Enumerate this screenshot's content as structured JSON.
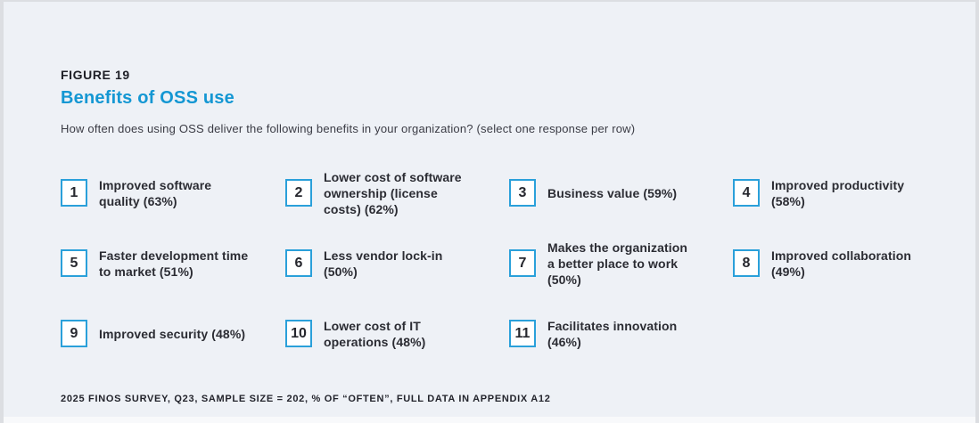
{
  "figure": {
    "label": "FIGURE 19",
    "title": "Benefits of OSS use",
    "question": "How often does using OSS deliver the following benefits in your organization? (select one response per row)",
    "footnote": "2025 FINOS SURVEY, Q23, SAMPLE SIZE = 202, % OF “OFTEN”, FULL DATA IN APPENDIX A12"
  },
  "grid": {
    "items": [
      {
        "rank": "1",
        "text": "Improved software quality (63%)"
      },
      {
        "rank": "2",
        "text": "Lower cost of software ownership (license costs) (62%)"
      },
      {
        "rank": "3",
        "text": "Business value (59%)"
      },
      {
        "rank": "4",
        "text": "Improved productivity (58%)"
      },
      {
        "rank": "5",
        "text": "Faster development time to market (51%)"
      },
      {
        "rank": "6",
        "text": "Less vendor lock-in (50%)"
      },
      {
        "rank": "7",
        "text": "Makes the organization a better place to work (50%)"
      },
      {
        "rank": "8",
        "text": "Improved collaboration (49%)"
      },
      {
        "rank": "9",
        "text": "Improved security (48%)"
      },
      {
        "rank": "10",
        "text": "Lower cost of IT operations (48%)"
      },
      {
        "rank": "11",
        "text": "Facilitates innovation (46%)"
      }
    ]
  },
  "colors": {
    "accent_blue": "#1497d3",
    "box_border_blue": "#2aa0da",
    "card_background": "#eef1f6",
    "outer_background": "#dcdee2",
    "text_dark": "#22232b"
  },
  "chart_data": {
    "type": "table",
    "title": "Benefits of OSS use",
    "subtitle": "How often does using OSS deliver the following benefits in your organization? (select one response per row)",
    "categories": [
      "Improved software quality",
      "Lower cost of software ownership (license costs)",
      "Business value",
      "Improved productivity",
      "Faster development time to market",
      "Less vendor lock-in",
      "Makes the organization a better place to work",
      "Improved collaboration",
      "Improved security",
      "Lower cost of IT operations",
      "Facilitates innovation"
    ],
    "values": [
      63,
      62,
      59,
      58,
      51,
      50,
      50,
      49,
      48,
      48,
      46
    ],
    "value_unit": "% of “often”",
    "sample_size": 202,
    "source": "2025 FINOS Survey, Q23",
    "layout": "ranked list, 4 columns x 3 rows, numbered boxes"
  }
}
